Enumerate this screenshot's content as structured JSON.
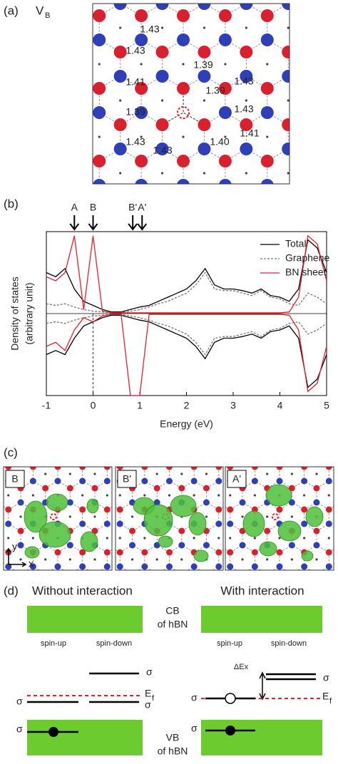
{
  "panel_a": {
    "label": "(a)",
    "title": "V",
    "title_sub": "B",
    "bond_labels": [
      "1.43",
      "1.43",
      "1.39",
      "1.39",
      "1.43",
      "1.41",
      "1.43",
      "1.39",
      "1.43",
      "1.40",
      "1.41",
      "1.43"
    ]
  },
  "chart_data": {
    "type": "line",
    "label": "(b)",
    "xlabel": "Energy (eV)",
    "ylabel": [
      "Density of states",
      "(arbitrary unit)"
    ],
    "xlim": [
      -1,
      5
    ],
    "xticks": [
      -1,
      0,
      1,
      2,
      3,
      4,
      5
    ],
    "ylim": [
      -1,
      1
    ],
    "markers": [
      {
        "label": "A",
        "x": -0.4
      },
      {
        "label": "B",
        "x": 0
      },
      {
        "label": "B'",
        "x": 0.85
      },
      {
        "label": "A'",
        "x": 1.05
      }
    ],
    "x": [
      -1,
      -0.8,
      -0.6,
      -0.4,
      -0.2,
      0,
      0.2,
      0.4,
      0.6,
      0.8,
      1,
      1.2,
      1.4,
      1.6,
      1.8,
      2,
      2.2,
      2.4,
      2.6,
      2.8,
      3,
      3.2,
      3.4,
      3.6,
      3.8,
      4,
      4.2,
      4.4,
      4.6,
      4.8,
      5
    ],
    "series": [
      {
        "name": "Total",
        "color": "#000000",
        "dash": false,
        "values": [
          0.5,
          0.45,
          0.55,
          0.3,
          0.15,
          0.1,
          0.05,
          0.02,
          0.02,
          0.05,
          0.08,
          0.1,
          0.15,
          0.2,
          0.25,
          0.3,
          0.4,
          0.55,
          0.35,
          0.3,
          0.3,
          0.28,
          0.25,
          0.3,
          0.22,
          0.2,
          0.15,
          0.3,
          0.9,
          0.8,
          0.5
        ],
        "values_down": [
          -0.5,
          -0.45,
          -0.5,
          -0.3,
          -0.15,
          -0.1,
          -0.05,
          -0.02,
          -0.02,
          -0.05,
          -0.08,
          -0.1,
          -0.15,
          -0.2,
          -0.25,
          -0.3,
          -0.4,
          -0.55,
          -0.35,
          -0.3,
          -0.3,
          -0.28,
          -0.25,
          -0.3,
          -0.22,
          -0.2,
          -0.15,
          -0.3,
          -0.9,
          -0.8,
          -0.5
        ]
      },
      {
        "name": "Graphene",
        "color": "#777777",
        "dash": true,
        "values": [
          0.12,
          0.1,
          0.12,
          0.08,
          0.05,
          0.03,
          0.02,
          0.01,
          0.01,
          0.03,
          0.05,
          0.08,
          0.12,
          0.15,
          0.2,
          0.25,
          0.35,
          0.5,
          0.3,
          0.28,
          0.28,
          0.25,
          0.22,
          0.28,
          0.2,
          0.18,
          0.12,
          0.1,
          0.25,
          0.2,
          0.12
        ],
        "values_down": [
          -0.12,
          -0.1,
          -0.12,
          -0.08,
          -0.05,
          -0.03,
          -0.02,
          -0.01,
          -0.01,
          -0.03,
          -0.05,
          -0.08,
          -0.12,
          -0.15,
          -0.2,
          -0.25,
          -0.35,
          -0.5,
          -0.3,
          -0.28,
          -0.28,
          -0.25,
          -0.22,
          -0.28,
          -0.2,
          -0.18,
          -0.12,
          -0.1,
          -0.25,
          -0.2,
          -0.12
        ]
      },
      {
        "name": "BN sheet",
        "color": "#e8202a",
        "dash": false,
        "values": [
          0.45,
          0.4,
          0.5,
          0.95,
          0.05,
          0.95,
          0.03,
          0.01,
          0.01,
          0.01,
          0.01,
          0.01,
          0.01,
          0.01,
          0.01,
          0.01,
          0.01,
          0.01,
          0.01,
          0.01,
          0.01,
          0.01,
          0.01,
          0.01,
          0.01,
          0.01,
          0.02,
          0.2,
          0.95,
          0.85,
          0.4
        ],
        "values_down": [
          -0.4,
          -0.35,
          -0.45,
          -0.2,
          -0.05,
          -0.1,
          -0.03,
          -0.01,
          -0.01,
          -1,
          -1,
          -0.01,
          -0.01,
          -0.01,
          -0.01,
          -0.01,
          -0.01,
          -0.01,
          -0.01,
          -0.01,
          -0.01,
          -0.01,
          -0.01,
          -0.01,
          -0.01,
          -0.01,
          -0.02,
          -0.2,
          -0.95,
          -0.85,
          -0.4
        ]
      }
    ]
  },
  "panel_c": {
    "label": "(c)",
    "images": [
      "B",
      "B'",
      "A'"
    ],
    "axis_y": "y",
    "axis_x": "x"
  },
  "panel_d": {
    "label": "(d)",
    "left_title": "Without interaction",
    "right_title": "With interaction",
    "cb": "CB",
    "cb_sub": "of hBN",
    "vb": "VB",
    "vb_sub": "of hBN",
    "spin_up": "spin-up",
    "spin_down": "spin-down",
    "sigma": "σ",
    "ef": "E",
    "ef_sub": "f",
    "delta": "ΔEx"
  }
}
